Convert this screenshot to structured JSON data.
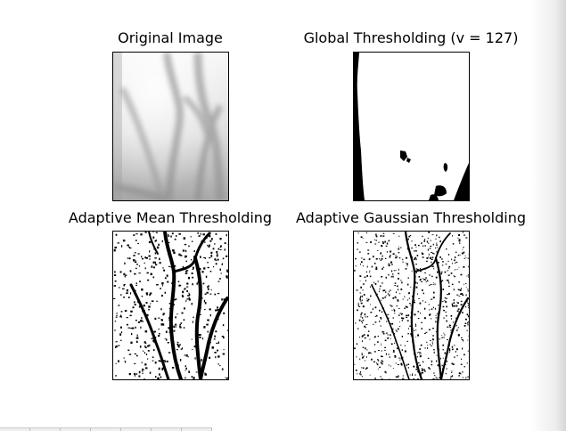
{
  "panels": {
    "original": {
      "title": "Original Image"
    },
    "global": {
      "title": "Global Thresholding (v = 127)"
    },
    "mean": {
      "title": "Adaptive Mean Thresholding"
    },
    "gaussian": {
      "title": "Adaptive Gaussian Thresholding"
    }
  },
  "colors": {
    "foreground": "#000000",
    "background": "#ffffff",
    "grayscale_light": "#f2f2f2",
    "grayscale_dark": "#7a7a7a"
  },
  "toolbar": {
    "button_count": 7
  }
}
